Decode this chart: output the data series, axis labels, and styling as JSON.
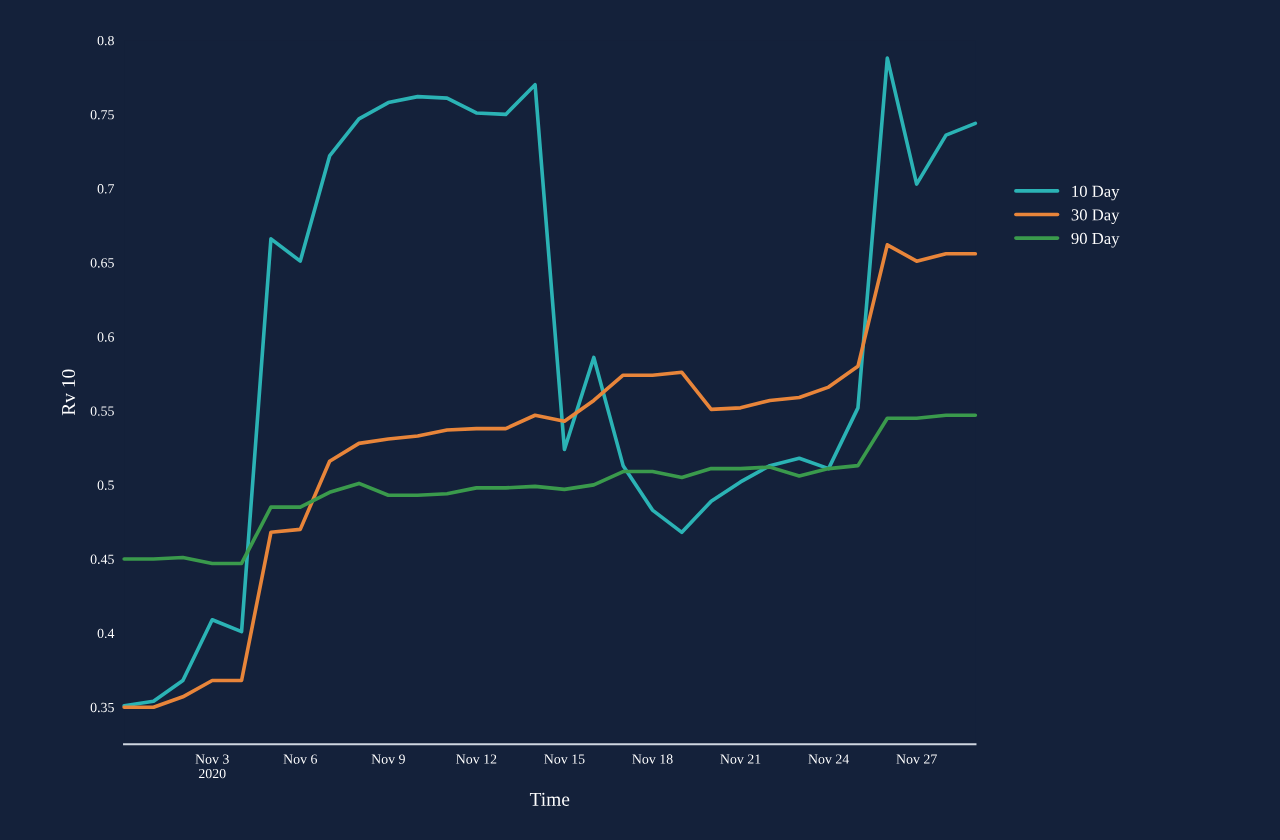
{
  "chart_data": {
    "type": "line",
    "xlabel": "Time",
    "ylabel": "Rv 10",
    "x": [
      "2020-10-31",
      "2020-11-01",
      "2020-11-02",
      "2020-11-03",
      "2020-11-04",
      "2020-11-05",
      "2020-11-06",
      "2020-11-07",
      "2020-11-08",
      "2020-11-09",
      "2020-11-10",
      "2020-11-11",
      "2020-11-12",
      "2020-11-13",
      "2020-11-14",
      "2020-11-15",
      "2020-11-16",
      "2020-11-17",
      "2020-11-18",
      "2020-11-19",
      "2020-11-20",
      "2020-11-21",
      "2020-11-22",
      "2020-11-23",
      "2020-11-24",
      "2020-11-25",
      "2020-11-26",
      "2020-11-27",
      "2020-11-28",
      "2020-11-29"
    ],
    "series": [
      {
        "name": "10 Day",
        "color": "#2bb3b5",
        "values": [
          0.351,
          0.354,
          0.368,
          0.409,
          0.401,
          0.666,
          0.651,
          0.722,
          0.747,
          0.758,
          0.762,
          0.761,
          0.751,
          0.75,
          0.77,
          0.524,
          0.586,
          0.513,
          0.483,
          0.468,
          0.489,
          0.502,
          0.513,
          0.518,
          0.511,
          0.552,
          0.788,
          0.703,
          0.736,
          0.744
        ]
      },
      {
        "name": "30 Day",
        "color": "#e8853a",
        "values": [
          0.35,
          0.35,
          0.357,
          0.368,
          0.368,
          0.468,
          0.47,
          0.516,
          0.528,
          0.531,
          0.533,
          0.537,
          0.538,
          0.538,
          0.547,
          0.543,
          0.557,
          0.574,
          0.574,
          0.576,
          0.551,
          0.552,
          0.557,
          0.559,
          0.566,
          0.58,
          0.662,
          0.651,
          0.656,
          0.656
        ]
      },
      {
        "name": "90 Day",
        "color": "#3a9a4c",
        "values": [
          0.45,
          0.45,
          0.451,
          0.447,
          0.447,
          0.485,
          0.485,
          0.495,
          0.501,
          0.493,
          0.493,
          0.494,
          0.498,
          0.498,
          0.499,
          0.497,
          0.5,
          0.509,
          0.509,
          0.505,
          0.511,
          0.511,
          0.512,
          0.506,
          0.511,
          0.513,
          0.545,
          0.545,
          0.547,
          0.547
        ]
      }
    ],
    "xlim": [
      "2020-10-31",
      "2020-11-29"
    ],
    "xticks": [
      {
        "value": "2020-11-03",
        "label": "Nov 3\n2020"
      },
      {
        "value": "2020-11-06",
        "label": "Nov 6"
      },
      {
        "value": "2020-11-09",
        "label": "Nov 9"
      },
      {
        "value": "2020-11-12",
        "label": "Nov 12"
      },
      {
        "value": "2020-11-15",
        "label": "Nov 15"
      },
      {
        "value": "2020-11-18",
        "label": "Nov 18"
      },
      {
        "value": "2020-11-21",
        "label": "Nov 21"
      },
      {
        "value": "2020-11-24",
        "label": "Nov 24"
      },
      {
        "value": "2020-11-27",
        "label": "Nov 27"
      }
    ],
    "ylim": [
      0.325,
      0.8
    ],
    "yticks": [
      0.35,
      0.4,
      0.45,
      0.5,
      0.55,
      0.6,
      0.65,
      0.7,
      0.75,
      0.8
    ],
    "grid": false,
    "legend": "right",
    "marker": "none",
    "line_style": "solid"
  }
}
